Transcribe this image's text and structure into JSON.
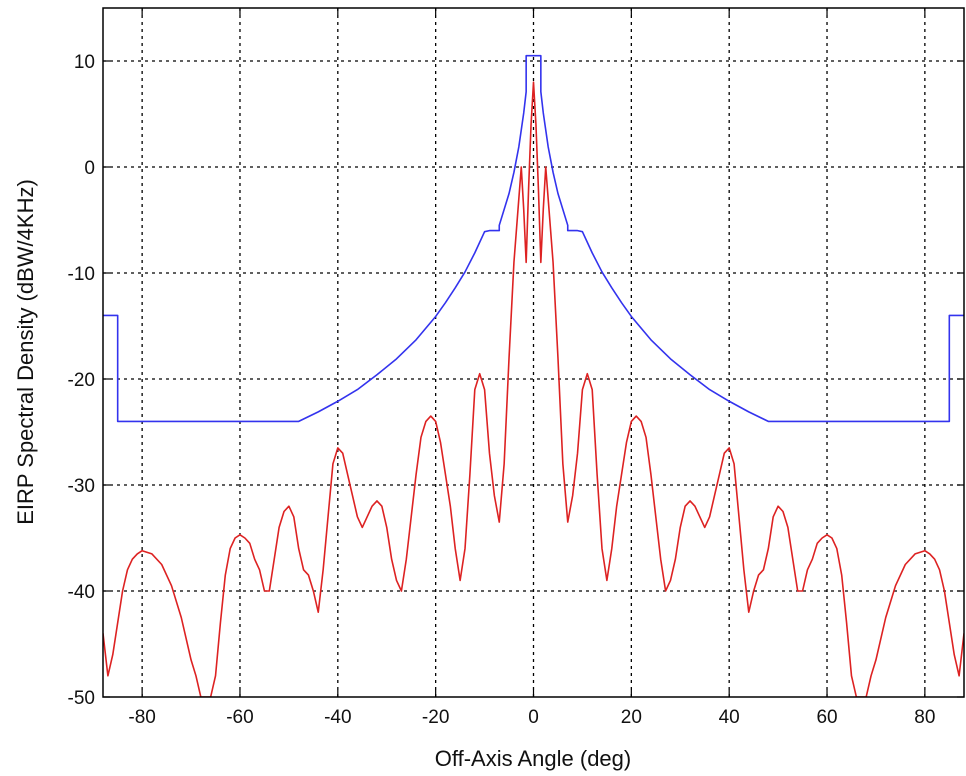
{
  "chart_data": {
    "type": "line",
    "title": "",
    "xlabel": "Off-Axis Angle (deg)",
    "ylabel": "EIRP Spectral Density (dBW/4KHz)",
    "xlim": [
      -88,
      88
    ],
    "ylim": [
      -50,
      15
    ],
    "xticks": [
      -80,
      -60,
      -40,
      -20,
      0,
      20,
      40,
      60,
      80
    ],
    "yticks": [
      10,
      0,
      -10,
      -20,
      -30,
      -40,
      -50
    ],
    "grid": true,
    "legend": "none",
    "series": [
      {
        "color": "#3333ee",
        "x": [
          -88,
          -85,
          -85,
          -48,
          -44,
          -40,
          -36,
          -32,
          -28,
          -24,
          -20,
          -18,
          -16,
          -14,
          -12,
          -10,
          -9,
          -7,
          -7,
          -5,
          -4,
          -3,
          -2,
          -1.5,
          -1.5,
          -1,
          0,
          1,
          1.5,
          1.5,
          2,
          3,
          4,
          5,
          7,
          7,
          9,
          10,
          12,
          14,
          16,
          18,
          20,
          24,
          28,
          32,
          36,
          40,
          44,
          48,
          85,
          85,
          88
        ],
        "y": [
          -14,
          -14,
          -24,
          -24,
          -23.1,
          -22.1,
          -21,
          -19.6,
          -18.1,
          -16.3,
          -14.1,
          -12.8,
          -11.4,
          -9.9,
          -8.1,
          -6.1,
          -6,
          -6,
          -5.5,
          -2.5,
          -0.5,
          1.9,
          5.1,
          7.1,
          10.5,
          10.5,
          10.5,
          10.5,
          10.5,
          7.1,
          5.1,
          1.9,
          -0.5,
          -2.5,
          -5.5,
          -6,
          -6,
          -6.1,
          -8.1,
          -9.9,
          -11.4,
          -12.8,
          -14.1,
          -16.3,
          -18.1,
          -19.6,
          -21,
          -22.1,
          -23.1,
          -24,
          -24,
          -14,
          -14
        ]
      },
      {
        "color": "#dd2222",
        "x": [
          -88,
          -87,
          -86,
          -85,
          -84,
          -83,
          -82,
          -81,
          -80,
          -78,
          -76,
          -74,
          -72,
          -70,
          -69,
          -68,
          -67,
          -66,
          -65,
          -64,
          -63,
          -62,
          -61,
          -60,
          -59,
          -58,
          -57,
          -56,
          -55,
          -54,
          -53,
          -52,
          -51,
          -50,
          -49,
          -48,
          -47,
          -46,
          -45,
          -44,
          -43,
          -42,
          -41,
          -40,
          -39,
          -38,
          -37,
          -36,
          -35,
          -34,
          -33,
          -32,
          -31,
          -30,
          -29,
          -28,
          -27,
          -26,
          -25,
          -24,
          -23,
          -22,
          -21,
          -20,
          -19,
          -18,
          -17,
          -16,
          -15,
          -14,
          -13,
          -12,
          -11,
          -10,
          -9,
          -8,
          -7,
          -6,
          -5,
          -4,
          -3,
          -2.5,
          -2,
          -1.5,
          -1,
          -0.5,
          0,
          0.5,
          1,
          1.5,
          2,
          2.5,
          3,
          4,
          5,
          6,
          7,
          8,
          9,
          10,
          11,
          12,
          13,
          14,
          15,
          16,
          17,
          18,
          19,
          20,
          21,
          22,
          23,
          24,
          25,
          26,
          27,
          28,
          29,
          30,
          31,
          32,
          33,
          34,
          35,
          36,
          37,
          38,
          39,
          40,
          41,
          42,
          43,
          44,
          45,
          46,
          47,
          48,
          49,
          50,
          51,
          52,
          53,
          54,
          55,
          56,
          57,
          58,
          59,
          60,
          61,
          62,
          63,
          64,
          65,
          66,
          67,
          68,
          69,
          70,
          72,
          74,
          76,
          78,
          80,
          81,
          82,
          83,
          84,
          85,
          86,
          87,
          88
        ],
        "y": [
          -44,
          -48,
          -46,
          -43,
          -40,
          -38,
          -37,
          -36.5,
          -36.2,
          -36.5,
          -37.5,
          -39.5,
          -42.5,
          -46.5,
          -48,
          -50,
          -50,
          -50,
          -48,
          -43,
          -38.5,
          -36,
          -35,
          -34.7,
          -35,
          -35.5,
          -37,
          -38,
          -40,
          -40,
          -37,
          -34,
          -32.5,
          -32,
          -33,
          -36,
          -38,
          -38.5,
          -40,
          -42,
          -38,
          -33,
          -28,
          -26.5,
          -27,
          -29,
          -31,
          -33,
          -34,
          -33,
          -32,
          -31.5,
          -32,
          -34,
          -37,
          -39,
          -40,
          -37,
          -33,
          -29,
          -25.5,
          -24,
          -23.5,
          -24,
          -26,
          -29,
          -32,
          -36,
          -39,
          -36,
          -29,
          -21,
          -19.5,
          -21,
          -27,
          -31,
          -33.5,
          -28,
          -18,
          -9,
          -3,
          0,
          -4,
          -9,
          -2,
          4,
          8,
          4,
          -2,
          -9,
          -4,
          0,
          -3,
          -9,
          -18,
          -28,
          -33.5,
          -31,
          -27,
          -21,
          -19.5,
          -21,
          -29,
          -36,
          -39,
          -36,
          -32,
          -29,
          -26,
          -24,
          -23.5,
          -24,
          -25.5,
          -29,
          -33,
          -37,
          -40,
          -39,
          -37,
          -34,
          -32,
          -31.5,
          -32,
          -33,
          -34,
          -33,
          -31,
          -29,
          -27,
          -26.5,
          -28,
          -33,
          -38,
          -42,
          -40,
          -38.5,
          -38,
          -36,
          -33,
          -32,
          -32.5,
          -34,
          -37,
          -40,
          -40,
          -38,
          -37,
          -35.5,
          -35,
          -34.7,
          -35,
          -36,
          -38.5,
          -43,
          -48,
          -50,
          -50,
          -50,
          -48,
          -46.5,
          -42.5,
          -39.5,
          -37.5,
          -36.5,
          -36.2,
          -36.5,
          -37,
          -38,
          -40,
          -43,
          -46,
          -48,
          -44
        ]
      }
    ]
  }
}
